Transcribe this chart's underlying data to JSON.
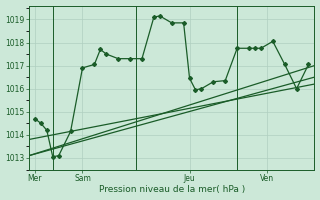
{
  "background_color": "#cce8d8",
  "grid_color": "#b0cfc0",
  "line_color": "#1a5c28",
  "ylim": [
    1012.5,
    1019.6
  ],
  "yticks": [
    1013,
    1014,
    1015,
    1016,
    1017,
    1018,
    1019
  ],
  "xlabel": "Pression niveau de la mer( hPa )",
  "day_positions": [
    0.5,
    4.5,
    13.5,
    20.0
  ],
  "day_labels": [
    "Mer",
    "Sam",
    "Jeu",
    "Ven"
  ],
  "day_vlines": [
    2.0,
    9.0,
    17.5
  ],
  "xlim": [
    0,
    24
  ],
  "series1_x": [
    0.5,
    1.0,
    1.5,
    2.0,
    2.5,
    3.5,
    4.5,
    5.5,
    6.0,
    6.5,
    7.5,
    8.5,
    9.5,
    10.5,
    11.0,
    12.0,
    13.0,
    13.5,
    14.0,
    14.5,
    15.5,
    16.5,
    17.5,
    18.5,
    19.0,
    19.5,
    20.5,
    21.5,
    22.5,
    23.5
  ],
  "series1_y": [
    1014.7,
    1014.5,
    1014.2,
    1013.05,
    1013.1,
    1014.15,
    1016.9,
    1017.05,
    1017.7,
    1017.5,
    1017.3,
    1017.3,
    1017.3,
    1019.1,
    1019.15,
    1018.85,
    1018.85,
    1016.45,
    1015.95,
    1016.0,
    1016.3,
    1016.35,
    1017.75,
    1017.75,
    1017.75,
    1017.75,
    1018.05,
    1017.05,
    1016.0,
    1017.05
  ],
  "series3_x": [
    0.0,
    24.0
  ],
  "series3_y": [
    1013.1,
    1016.5
  ],
  "series4_x": [
    0.0,
    24.0
  ],
  "series4_y": [
    1013.1,
    1017.0
  ],
  "series5_x": [
    0.0,
    24.0
  ],
  "series5_y": [
    1013.8,
    1016.2
  ],
  "figsize": [
    3.2,
    2.0
  ],
  "dpi": 100
}
